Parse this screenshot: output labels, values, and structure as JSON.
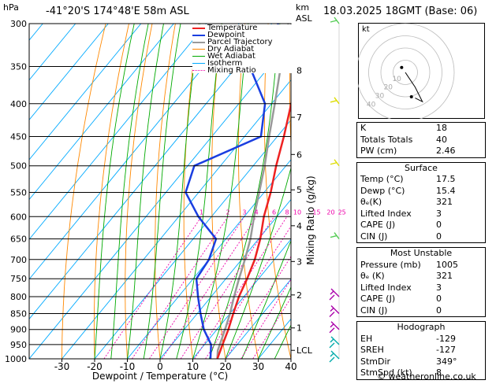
{
  "header": {
    "hpa_unit": "hPa",
    "location": "-41°20'S  174°48'E  58m  ASL",
    "km_unit": "km",
    "asl": "ASL",
    "datetime": "18.03.2025  18GMT  (Base: 06)"
  },
  "chart_data": {
    "type": "skew-t",
    "xlabel": "Dewpoint / Temperature (°C)",
    "ylabel_right": "Mixing Ratio (g/kg)",
    "x_ticks": [
      "-30",
      "-20",
      "-10",
      "0",
      "10",
      "20",
      "30",
      "40"
    ],
    "p_ticks": [
      "300",
      "350",
      "400",
      "450",
      "500",
      "550",
      "600",
      "650",
      "700",
      "750",
      "800",
      "850",
      "900",
      "950",
      "1000"
    ],
    "km_ticks": [
      {
        "label": "8",
        "p": 355
      },
      {
        "label": "7",
        "p": 420
      },
      {
        "label": "6",
        "p": 480
      },
      {
        "label": "5",
        "p": 545
      },
      {
        "label": "4",
        "p": 620
      },
      {
        "label": "3",
        "p": 705
      },
      {
        "label": "2",
        "p": 795
      },
      {
        "label": "1",
        "p": 895
      },
      {
        "label": "LCL",
        "p": 970
      }
    ],
    "mixing_ratio_labels": [
      "1",
      "2",
      "3",
      "4",
      "6",
      "8",
      "10",
      "15",
      "20",
      "25"
    ],
    "legend": [
      "Temperature",
      "Dewpoint",
      "Parcel Trajectory",
      "Dry Adiabat",
      "Wet Adiabat",
      "Isotherm",
      "Mixing Ratio"
    ],
    "colors": {
      "temperature": "#ee2222",
      "dewpoint": "#1a3ee0",
      "parcel": "#999999",
      "dry_adiabat": "#ff8800",
      "wet_adiabat": "#00aa00",
      "isotherm": "#00aaff",
      "mixing_ratio": "#ee00aa"
    },
    "temperature": [
      {
        "p": 1000,
        "t": 17.5
      },
      {
        "p": 950,
        "t": 15.5
      },
      {
        "p": 900,
        "t": 13.5
      },
      {
        "p": 850,
        "t": 11.0
      },
      {
        "p": 800,
        "t": 8.5
      },
      {
        "p": 750,
        "t": 6.5
      },
      {
        "p": 700,
        "t": 4.0
      },
      {
        "p": 650,
        "t": 0.5
      },
      {
        "p": 600,
        "t": -4.0
      },
      {
        "p": 550,
        "t": -8.0
      },
      {
        "p": 500,
        "t": -13.0
      },
      {
        "p": 450,
        "t": -18.0
      },
      {
        "p": 400,
        "t": -24.0
      },
      {
        "p": 350,
        "t": -31.0
      },
      {
        "p": 300,
        "t": -39.0
      }
    ],
    "dewpoint": [
      {
        "p": 1000,
        "t": 15.4
      },
      {
        "p": 950,
        "t": 12.0
      },
      {
        "p": 900,
        "t": 6.0
      },
      {
        "p": 850,
        "t": 1.0
      },
      {
        "p": 800,
        "t": -4.0
      },
      {
        "p": 750,
        "t": -9.0
      },
      {
        "p": 700,
        "t": -10.0
      },
      {
        "p": 650,
        "t": -13.0
      },
      {
        "p": 600,
        "t": -24.0
      },
      {
        "p": 550,
        "t": -34.0
      },
      {
        "p": 500,
        "t": -38.0
      },
      {
        "p": 450,
        "t": -25.0
      },
      {
        "p": 400,
        "t": -32.0
      },
      {
        "p": 350,
        "t": -46.0
      },
      {
        "p": 300,
        "t": -48.0
      }
    ],
    "parcel": [
      {
        "p": 1000,
        "t": 17.5
      },
      {
        "p": 970,
        "t": 15.5
      },
      {
        "p": 900,
        "t": 12.5
      },
      {
        "p": 850,
        "t": 10.0
      },
      {
        "p": 800,
        "t": 7.0
      },
      {
        "p": 750,
        "t": 4.0
      },
      {
        "p": 700,
        "t": 1.0
      },
      {
        "p": 650,
        "t": -2.5
      },
      {
        "p": 600,
        "t": -7.0
      },
      {
        "p": 550,
        "t": -11.5
      },
      {
        "p": 500,
        "t": -16.5
      },
      {
        "p": 450,
        "t": -22.5
      },
      {
        "p": 400,
        "t": -29.0
      },
      {
        "p": 350,
        "t": -36.5
      },
      {
        "p": 300,
        "t": -45.0
      }
    ],
    "hodograph": {
      "label": "kt",
      "ring_labels": [
        "10",
        "20",
        "30",
        "40"
      ],
      "points": [
        {
          "u": 0,
          "v": 0
        },
        {
          "u": 2,
          "v": -3
        },
        {
          "u": 8,
          "v": -12
        },
        {
          "u": 14,
          "v": -24
        },
        {
          "u": 8,
          "v": -21
        }
      ],
      "markers": [
        {
          "u": -3,
          "v": 4
        },
        {
          "u": 5,
          "v": -20
        }
      ]
    },
    "wind_barbs": [
      {
        "p": 1000,
        "color": "#00aaaa"
      },
      {
        "p": 950,
        "color": "#00aaaa"
      },
      {
        "p": 900,
        "color": "#aa00aa"
      },
      {
        "p": 850,
        "color": "#aa00aa"
      },
      {
        "p": 800,
        "color": "#aa00aa"
      },
      {
        "p": 650,
        "color": "#55cc55"
      },
      {
        "p": 500,
        "color": "#dddd00"
      },
      {
        "p": 400,
        "color": "#dddd00"
      },
      {
        "p": 300,
        "color": "#55cc55"
      }
    ]
  },
  "indices": [
    {
      "label": "K",
      "value": "18"
    },
    {
      "label": "Totals Totals",
      "value": "40"
    },
    {
      "label": "PW (cm)",
      "value": "2.46"
    }
  ],
  "surface": {
    "title": "Surface",
    "rows": [
      {
        "label": "Temp (°C)",
        "value": "17.5"
      },
      {
        "label": "Dewp (°C)",
        "value": "15.4"
      },
      {
        "label": "θₑ(K)",
        "value": "321"
      },
      {
        "label": "Lifted Index",
        "value": "3"
      },
      {
        "label": "CAPE (J)",
        "value": "0"
      },
      {
        "label": "CIN (J)",
        "value": "0"
      }
    ]
  },
  "most_unstable": {
    "title": "Most Unstable",
    "rows": [
      {
        "label": "Pressure (mb)",
        "value": "1005"
      },
      {
        "label": "θₑ (K)",
        "value": "321"
      },
      {
        "label": "Lifted Index",
        "value": "3"
      },
      {
        "label": "CAPE (J)",
        "value": "0"
      },
      {
        "label": "CIN (J)",
        "value": "0"
      }
    ]
  },
  "hodograph_box": {
    "title": "Hodograph",
    "rows": [
      {
        "label": "EH",
        "value": "-129"
      },
      {
        "label": "SREH",
        "value": "-127"
      },
      {
        "label": "StmDir",
        "value": "349°"
      },
      {
        "label": "StmSpd (kt)",
        "value": "8"
      }
    ]
  },
  "footer": {
    "copyright": "© weatheronline.co.uk"
  }
}
